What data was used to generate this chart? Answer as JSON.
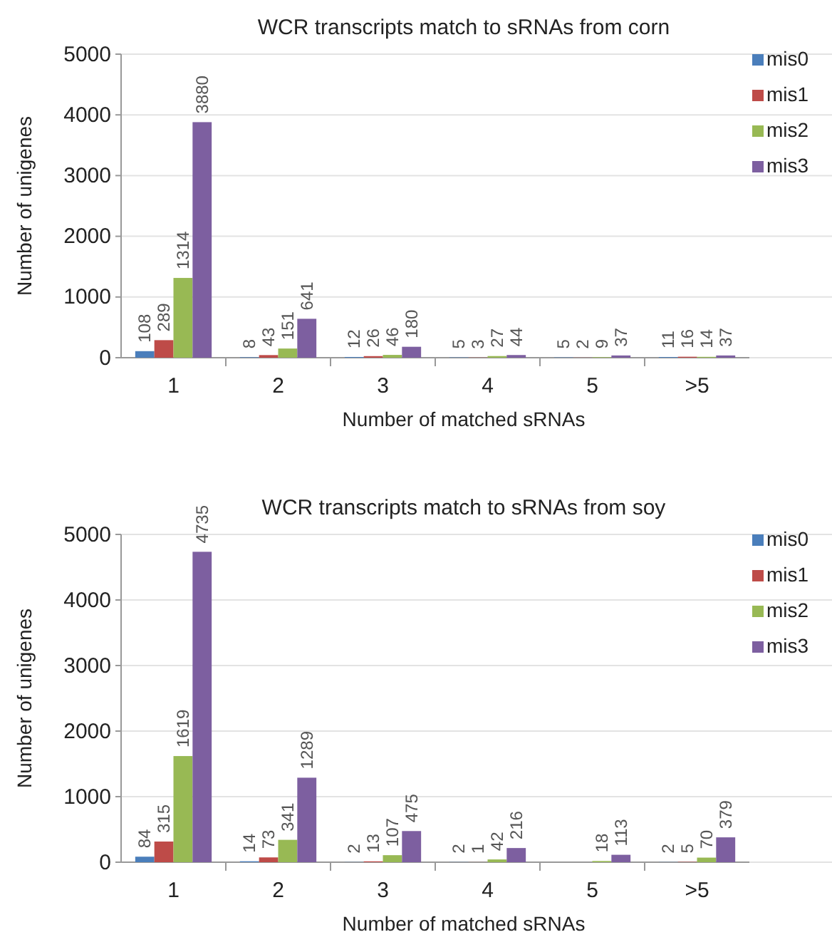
{
  "chart_data": [
    {
      "type": "bar",
      "title": "WCR transcripts match to sRNAs from corn",
      "xlabel": "Number of matched sRNAs",
      "ylabel": "Number of unigenes",
      "categories": [
        "1",
        "2",
        "3",
        "4",
        "5",
        ">5"
      ],
      "series": [
        {
          "name": "mis0",
          "color": "#4a7ebb",
          "values": [
            108,
            8,
            12,
            5,
            5,
            11
          ]
        },
        {
          "name": "mis1",
          "color": "#be4b48",
          "values": [
            289,
            43,
            26,
            3,
            2,
            16
          ]
        },
        {
          "name": "mis2",
          "color": "#98b954",
          "values": [
            1314,
            151,
            46,
            27,
            9,
            14
          ]
        },
        {
          "name": "mis3",
          "color": "#7d5fa0",
          "values": [
            3880,
            641,
            180,
            44,
            37,
            37
          ]
        }
      ],
      "ylim": [
        0,
        5000
      ],
      "yticks": [
        0,
        1000,
        2000,
        3000,
        4000,
        5000
      ],
      "grid": "y",
      "legend": "top right",
      "data_labels": true
    },
    {
      "type": "bar",
      "title": "WCR transcripts match to sRNAs from soy",
      "xlabel": "Number of matched sRNAs",
      "ylabel": "Number of unigenes",
      "categories": [
        "1",
        "2",
        "3",
        "4",
        "5",
        ">5"
      ],
      "series": [
        {
          "name": "mis0",
          "color": "#4a7ebb",
          "values": [
            84,
            14,
            2,
            2,
            null,
            2
          ]
        },
        {
          "name": "mis1",
          "color": "#be4b48",
          "values": [
            315,
            73,
            13,
            1,
            null,
            5
          ]
        },
        {
          "name": "mis2",
          "color": "#98b954",
          "values": [
            1619,
            341,
            107,
            42,
            18,
            70
          ]
        },
        {
          "name": "mis3",
          "color": "#7d5fa0",
          "values": [
            4735,
            1289,
            475,
            216,
            113,
            379
          ]
        }
      ],
      "ylim": [
        0,
        5000
      ],
      "yticks": [
        0,
        1000,
        2000,
        3000,
        4000,
        5000
      ],
      "grid": "y",
      "legend": "top right",
      "data_labels": true
    }
  ]
}
